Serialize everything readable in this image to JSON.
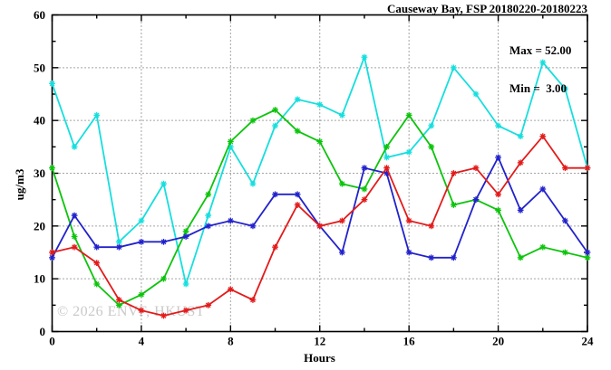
{
  "title": "Causeway Bay, FSP 20180220-20180223",
  "annotation": {
    "max_label": "Max = 52.00",
    "min_label": "Min =  3.00"
  },
  "watermark": "© 2026 ENVF, HKUST",
  "chart_data": {
    "type": "line",
    "title": "Causeway Bay, FSP 20180220-20180223",
    "xlabel": "Hours",
    "ylabel": "ug/m3",
    "xlim": [
      0,
      24
    ],
    "ylim": [
      0,
      60
    ],
    "x_ticks_major": [
      0,
      4,
      8,
      12,
      16,
      20,
      24
    ],
    "x_ticks_minor": [
      2,
      6,
      10,
      14,
      18,
      22
    ],
    "y_ticks_major": [
      0,
      10,
      20,
      30,
      40,
      50,
      60
    ],
    "y_ticks_minor": [
      5,
      15,
      25,
      35,
      45,
      55
    ],
    "grid": true,
    "legend": "none",
    "marker": "asterisk",
    "max": 52.0,
    "min": 3.0,
    "x": [
      0,
      1,
      2,
      3,
      4,
      5,
      6,
      7,
      8,
      9,
      10,
      11,
      12,
      13,
      14,
      15,
      16,
      17,
      18,
      19,
      20,
      21,
      22,
      23,
      24
    ],
    "series": [
      {
        "name": "cyan",
        "color": "#17dede",
        "values": [
          47,
          35,
          41,
          17,
          21,
          28,
          9,
          22,
          35,
          28,
          39,
          44,
          43,
          41,
          52,
          33,
          34,
          39,
          50,
          45,
          39,
          37,
          51,
          46,
          31
        ]
      },
      {
        "name": "green",
        "color": "#0cc40c",
        "values": [
          31,
          18,
          9,
          5,
          7,
          10,
          19,
          26,
          36,
          40,
          42,
          38,
          36,
          28,
          27,
          35,
          41,
          35,
          24,
          25,
          23,
          14,
          16,
          15,
          14
        ]
      },
      {
        "name": "blue",
        "color": "#2222cc",
        "values": [
          14,
          22,
          16,
          16,
          17,
          17,
          18,
          20,
          21,
          20,
          26,
          26,
          20,
          15,
          31,
          30,
          15,
          14,
          14,
          25,
          33,
          23,
          27,
          21,
          15
        ]
      },
      {
        "name": "red",
        "color": "#e31b1b",
        "values": [
          15,
          16,
          13,
          6,
          4,
          3,
          4,
          5,
          8,
          6,
          16,
          24,
          20,
          21,
          25,
          31,
          21,
          20,
          30,
          31,
          26,
          32,
          37,
          31,
          31
        ]
      }
    ]
  }
}
